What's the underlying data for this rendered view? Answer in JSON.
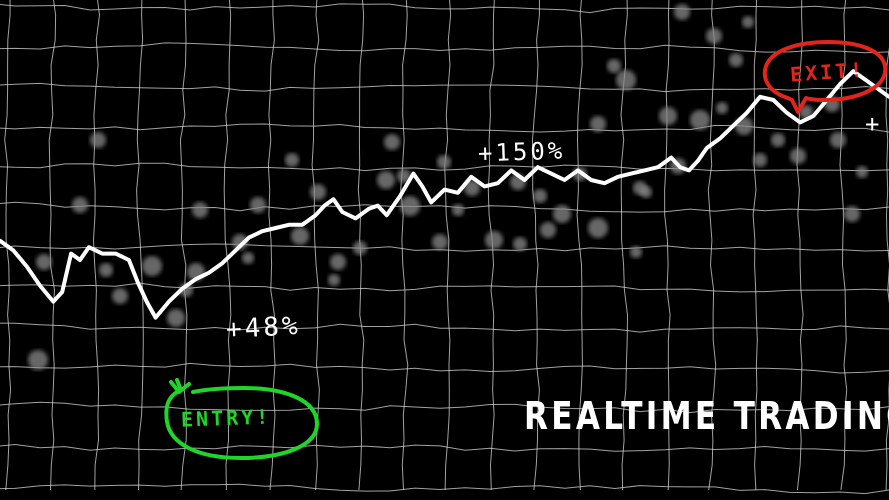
{
  "caption": "REALTIME TRADING",
  "annotations": {
    "gain_1": "+48%",
    "gain_2": "+150%",
    "gain_3": "+",
    "entry": "ENTRY!",
    "exit": "EXIT!"
  },
  "colors": {
    "background": "#000000",
    "line": "#ffffff",
    "grid": "#d8d8d8",
    "entry": "#1fd628",
    "exit": "#e2241a",
    "bokeh": "#8a8a8a"
  },
  "chart_data": {
    "type": "line",
    "title": "",
    "xlabel": "",
    "ylabel": "",
    "xlim": [
      0,
      100
    ],
    "ylim": [
      0,
      100
    ],
    "grid": true,
    "legend": "none",
    "series": [
      {
        "x": [
          0,
          1.5,
          3,
          4.5,
          6,
          7,
          8,
          9,
          10,
          11.5,
          13,
          14.5,
          15.5,
          16.5,
          17.5,
          19,
          20.5,
          22,
          23.5,
          25,
          26.5,
          28,
          29.5,
          31,
          32.5,
          34,
          35.5,
          36.5,
          37.5,
          38.5,
          40,
          41.5,
          42.5,
          43.5,
          45,
          46.5,
          47.5,
          48.5,
          50,
          51.5,
          53,
          54.5,
          56,
          57.5,
          59,
          60.5,
          62,
          63.5,
          65,
          66.5,
          68,
          69.5,
          71,
          72.5,
          74,
          75.5,
          76.5,
          77.5,
          78.5,
          79.5,
          81,
          82.5,
          84,
          85.5,
          87,
          88.5,
          90,
          91.5,
          93,
          94.5,
          96,
          97.5,
          99,
          100
        ],
        "y": [
          41,
          38,
          33,
          27,
          22,
          25,
          37,
          35,
          39,
          37,
          37,
          35,
          28,
          22,
          17,
          22,
          26,
          29,
          31,
          34,
          38,
          42,
          44,
          45,
          46,
          46,
          49,
          52,
          54,
          50,
          48,
          51,
          52,
          49,
          55,
          62,
          58,
          53,
          57,
          56,
          61,
          58,
          59,
          63,
          60,
          64,
          62,
          60,
          63,
          60,
          59,
          61,
          62,
          63,
          64,
          67,
          64,
          63,
          66,
          70,
          73,
          77,
          81,
          86,
          85,
          81,
          78,
          80,
          85,
          90,
          94,
          91,
          88,
          86
        ]
      }
    ]
  }
}
